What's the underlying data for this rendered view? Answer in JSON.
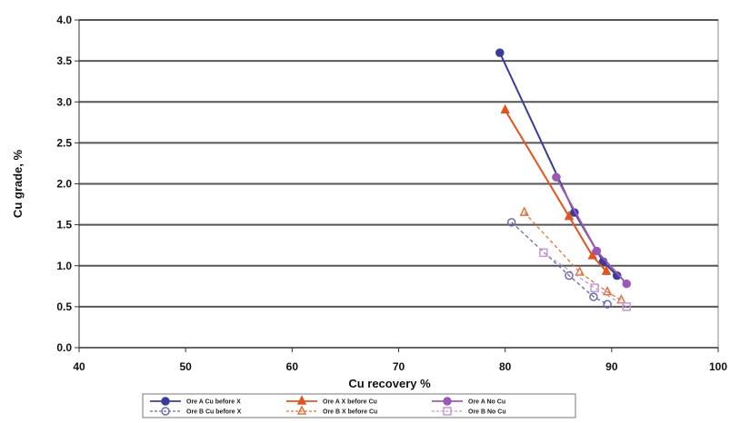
{
  "chart_data": {
    "type": "scatter",
    "title": "",
    "xlabel": "Cu recovery %",
    "ylabel": "Cu grade, %",
    "xlim": [
      40,
      100
    ],
    "ylim": [
      0,
      4.0
    ],
    "x_ticks": [
      "40",
      "50",
      "60",
      "70",
      "80",
      "90",
      "100"
    ],
    "y_ticks": [
      "0.0",
      "0.5",
      "1.0",
      "1.5",
      "2.0",
      "2.5",
      "3.0",
      "3.5",
      "4.0"
    ],
    "grid": "horizontal",
    "legend_position": "bottom",
    "series": [
      {
        "name": "Ore A Cu before X",
        "color": "#3b3b9c",
        "marker": "circle-filled",
        "line": "solid",
        "points": [
          [
            79.5,
            3.6
          ],
          [
            86.5,
            1.65
          ],
          [
            89.2,
            1.05
          ],
          [
            90.5,
            0.88
          ]
        ]
      },
      {
        "name": "Ore A X before Cu",
        "color": "#e0541e",
        "marker": "triangle-filled",
        "line": "solid",
        "points": [
          [
            80.0,
            2.9
          ],
          [
            86.0,
            1.6
          ],
          [
            88.2,
            1.12
          ],
          [
            89.5,
            0.93
          ]
        ]
      },
      {
        "name": "Ore A No Cu",
        "color": "#9b59b6",
        "marker": "circle-filled",
        "line": "solid",
        "points": [
          [
            84.8,
            2.08
          ],
          [
            88.6,
            1.18
          ],
          [
            91.4,
            0.78
          ]
        ]
      },
      {
        "name": "Ore B Cu before X",
        "color": "#6a6ab0",
        "marker": "circle-open",
        "line": "dashed",
        "points": [
          [
            80.6,
            1.53
          ],
          [
            86.0,
            0.88
          ],
          [
            88.3,
            0.62
          ],
          [
            89.6,
            0.53
          ]
        ]
      },
      {
        "name": "Ore B X before Cu",
        "color": "#e0723e",
        "marker": "triangle-open",
        "line": "dashed",
        "points": [
          [
            81.8,
            1.65
          ],
          [
            87.0,
            0.92
          ],
          [
            89.6,
            0.68
          ],
          [
            90.9,
            0.58
          ]
        ]
      },
      {
        "name": "Ore B No Cu",
        "color": "#c49ad6",
        "marker": "square-open",
        "line": "dashed",
        "points": [
          [
            83.6,
            1.16
          ],
          [
            88.4,
            0.73
          ],
          [
            91.4,
            0.5
          ]
        ]
      }
    ]
  }
}
